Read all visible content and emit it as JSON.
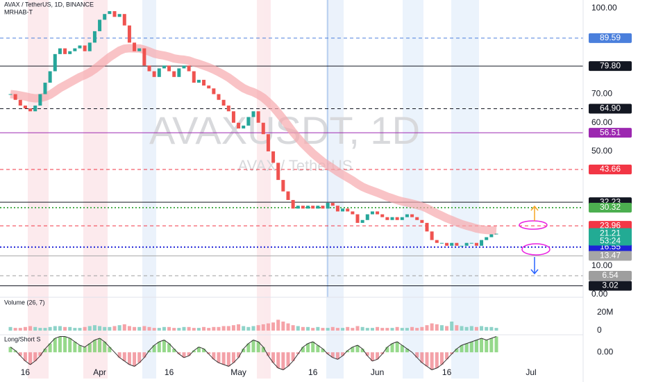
{
  "chart_data": {
    "type": "candlestick",
    "title": "AVAX / TetherUS, 1D, BINANCE",
    "indicator": "MRHAB-T",
    "watermark": "AVAXUSDT, 1D",
    "watermark_subtitle": "AVAX / TetherUS",
    "up_color": "#26a69a",
    "down_color": "#ef5350",
    "closes": [
      70,
      68,
      66,
      65,
      64,
      66,
      70,
      74,
      78,
      84,
      86,
      84,
      85,
      86,
      87,
      85,
      88,
      92,
      96,
      98,
      99,
      97,
      98,
      94,
      88,
      85,
      86,
      80,
      78,
      76,
      79,
      80,
      78,
      76,
      79,
      80,
      78,
      74,
      75,
      73,
      72,
      70,
      68,
      66,
      64,
      60,
      58,
      59,
      62,
      64,
      60,
      56,
      50,
      46,
      40,
      36,
      33,
      30,
      31,
      30,
      31,
      30,
      31,
      30,
      32,
      31,
      29,
      30,
      29,
      28,
      25,
      26,
      28,
      29,
      28,
      27,
      26,
      27,
      26,
      27,
      28,
      27,
      26,
      25,
      22,
      19,
      18,
      18,
      17,
      18,
      17,
      17,
      18,
      18,
      17,
      19,
      20,
      21,
      21.21
    ],
    "xlim": [
      -2.1,
      115.5
    ],
    "xticks": [
      {
        "value": 3,
        "label": "16"
      },
      {
        "value": 18,
        "label": "Apr"
      },
      {
        "value": 32,
        "label": "16"
      },
      {
        "value": 46,
        "label": "May"
      },
      {
        "value": 61,
        "label": "16"
      },
      {
        "value": 74,
        "label": "Jun"
      },
      {
        "value": 88,
        "label": "16"
      },
      {
        "value": 105,
        "label": "Jul"
      }
    ],
    "ylim": [
      -1,
      102.9
    ],
    "yticks": [
      {
        "value": 100,
        "label": "100.00"
      },
      {
        "value": 70,
        "label": "70.00"
      },
      {
        "value": 60,
        "label": "60.00"
      },
      {
        "value": 50,
        "label": "50.00"
      },
      {
        "value": 10,
        "label": "10.00"
      },
      {
        "value": 0,
        "label": "0.00"
      }
    ],
    "price_levels": [
      {
        "value": 89.59,
        "color": "#4a7fdc",
        "style": "dashed"
      },
      {
        "value": 79.8,
        "label": "79.80",
        "color": "#131722",
        "style": "solid"
      },
      {
        "value": 64.9,
        "label": "64.90",
        "color": "#131722",
        "style": "dashed"
      },
      {
        "value": 56.51,
        "color": "#9c27b0",
        "style": "solid"
      },
      {
        "value": 43.66,
        "color": "#f23645",
        "style": "dashed"
      },
      {
        "value": 32.23,
        "color": "#131722",
        "style": "solid"
      },
      {
        "value": 30.32,
        "color": "#4caf50",
        "style": "dotted"
      },
      {
        "value": 23.96,
        "color": "#f23645",
        "style": "dashed"
      },
      {
        "value": 16.55,
        "color": "#1e22d8",
        "style": "dotted"
      },
      {
        "value": 13.47,
        "color": "#a6a6a6",
        "style": "solid"
      },
      {
        "value": 6.54,
        "color": "#9e9e9e",
        "style": "dashed"
      },
      {
        "value": 3.02,
        "color": "#131722",
        "style": "solid"
      }
    ],
    "last_price": {
      "value": 21.21,
      "color": "#22ab94",
      "countdown": "53:24"
    },
    "volume": {
      "title": "Volume (26, 7)",
      "values": [
        4,
        3,
        3,
        4,
        5,
        4,
        3,
        3,
        4,
        5,
        5,
        4,
        4,
        3,
        3,
        4,
        5,
        6,
        5,
        4,
        4,
        5,
        6,
        7,
        5,
        4,
        4,
        5,
        4,
        3,
        3,
        4,
        4,
        3,
        3,
        4,
        4,
        3,
        3,
        4,
        3,
        4,
        4,
        5,
        5,
        6,
        7,
        5,
        4,
        5,
        6,
        7,
        8,
        9,
        12,
        10,
        8,
        6,
        5,
        4,
        4,
        3,
        4,
        3,
        3,
        4,
        3,
        3,
        4,
        3,
        5,
        4,
        3,
        3,
        4,
        3,
        3,
        3,
        4,
        3,
        3,
        4,
        3,
        4,
        6,
        8,
        7,
        6,
        5,
        10,
        6,
        5,
        4,
        5,
        4,
        5,
        4,
        4,
        3
      ],
      "ylim": [
        0,
        36.9
      ],
      "yticks": [
        {
          "value": 20,
          "label": "20M"
        },
        0
      ]
    },
    "oscillator": {
      "title": "Long/Short S",
      "values": [
        0.3,
        0.1,
        -0.2,
        -0.5,
        -0.7,
        -0.5,
        -0.2,
        0.2,
        0.5,
        0.8,
        0.9,
        0.9,
        0.8,
        0.6,
        0.4,
        0.3,
        0.5,
        0.7,
        0.8,
        0.6,
        0.3,
        0,
        -0.3,
        -0.5,
        -0.7,
        -0.8,
        -0.6,
        -0.3,
        0.1,
        0.4,
        0.6,
        0.7,
        0.5,
        0.2,
        -0.1,
        -0.3,
        -0.2,
        0.1,
        0.3,
        0.2,
        -0.1,
        -0.4,
        -0.6,
        -0.7,
        -0.8,
        -0.6,
        -0.3,
        0.2,
        0.5,
        0.7,
        0.6,
        0.3,
        -0.2,
        -0.6,
        -0.9,
        -1,
        -0.8,
        -0.5,
        -0.1,
        0.3,
        0.5,
        0.6,
        0.4,
        0.2,
        -0.1,
        -0.3,
        -0.4,
        -0.2,
        0.1,
        0.3,
        0.4,
        0.2,
        -0.2,
        -0.5,
        -0.4,
        -0.1,
        0.3,
        0.5,
        0.6,
        0.4,
        0.2,
        0,
        -0.3,
        -0.6,
        -0.8,
        -1,
        -0.9,
        -0.7,
        -0.4,
        -0.1,
        0.2,
        0.4,
        0.5,
        0.6,
        0.7,
        0.8,
        0.7,
        0.8,
        0.9
      ],
      "ylim": [
        -1.3,
        1.0
      ],
      "yticks": [
        {
          "value": 0,
          "label": "0.00"
        }
      ]
    }
  }
}
